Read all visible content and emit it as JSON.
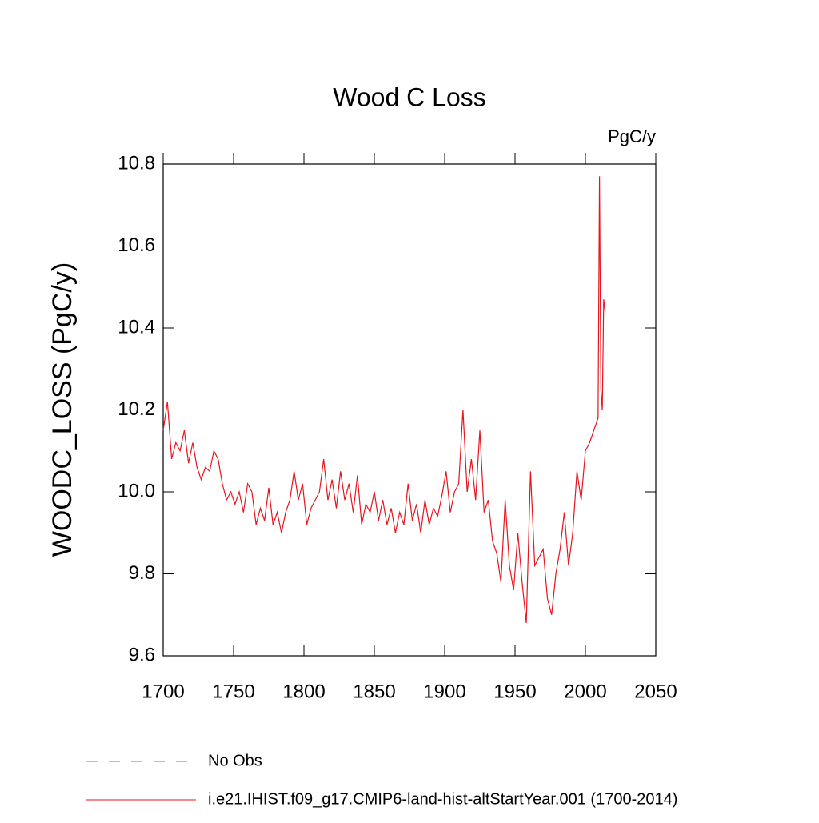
{
  "chart_data": {
    "type": "line",
    "title": "Wood C Loss",
    "units": "PgC/y",
    "ylabel": "WOODC_LOSS  (PgC/y)",
    "x": [
      1700,
      1703,
      1706,
      1709,
      1712,
      1715,
      1718,
      1721,
      1724,
      1727,
      1730,
      1733,
      1736,
      1739,
      1742,
      1745,
      1748,
      1751,
      1754,
      1757,
      1760,
      1763,
      1766,
      1769,
      1772,
      1775,
      1778,
      1781,
      1784,
      1787,
      1790,
      1793,
      1796,
      1799,
      1802,
      1805,
      1808,
      1811,
      1814,
      1817,
      1820,
      1823,
      1826,
      1829,
      1832,
      1835,
      1838,
      1841,
      1844,
      1847,
      1850,
      1853,
      1856,
      1859,
      1862,
      1865,
      1868,
      1871,
      1874,
      1877,
      1880,
      1883,
      1886,
      1889,
      1892,
      1895,
      1898,
      1901,
      1904,
      1907,
      1910,
      1913,
      1916,
      1919,
      1922,
      1925,
      1928,
      1931,
      1934,
      1937,
      1940,
      1943,
      1946,
      1949,
      1952,
      1955,
      1958,
      1961,
      1964,
      1967,
      1970,
      1973,
      1976,
      1979,
      1982,
      1985,
      1988,
      1991,
      1994,
      1997,
      2000,
      2003,
      2006,
      2009,
      2010,
      2011,
      2012,
      2013,
      2014
    ],
    "series": [
      {
        "name": "i.e21.IHIST.f09_g17.CMIP6-land-hist-altStartYear.001 (1700-2014)",
        "color": "#e8141e",
        "values": [
          10.15,
          10.22,
          10.08,
          10.12,
          10.1,
          10.15,
          10.07,
          10.12,
          10.06,
          10.03,
          10.06,
          10.05,
          10.1,
          10.08,
          10.02,
          9.98,
          10.0,
          9.97,
          10.0,
          9.95,
          10.02,
          10.0,
          9.92,
          9.96,
          9.93,
          10.01,
          9.92,
          9.95,
          9.9,
          9.95,
          9.98,
          10.05,
          9.98,
          10.02,
          9.92,
          9.96,
          9.98,
          10.0,
          10.08,
          9.98,
          10.03,
          9.96,
          10.05,
          9.98,
          10.02,
          9.95,
          10.04,
          9.92,
          9.97,
          9.95,
          10.0,
          9.93,
          9.98,
          9.92,
          9.96,
          9.9,
          9.95,
          9.92,
          10.02,
          9.93,
          9.97,
          9.9,
          9.98,
          9.92,
          9.96,
          9.94,
          9.99,
          10.05,
          9.95,
          10.0,
          10.02,
          10.2,
          10.0,
          10.08,
          9.98,
          10.15,
          9.95,
          9.98,
          9.88,
          9.85,
          9.78,
          9.98,
          9.82,
          9.76,
          9.9,
          9.78,
          9.68,
          10.05,
          9.82,
          9.84,
          9.86,
          9.74,
          9.7,
          9.8,
          9.86,
          9.95,
          9.82,
          9.9,
          10.05,
          9.98,
          10.1,
          10.12,
          10.15,
          10.18,
          10.77,
          10.25,
          10.2,
          10.47,
          10.44
        ]
      },
      {
        "name": "No Obs",
        "color": "#7b68c8",
        "dash": "dashed"
      }
    ],
    "xlim": [
      1700,
      2050
    ],
    "xticks": [
      1700,
      1750,
      1800,
      1850,
      1900,
      1950,
      2000,
      2050
    ],
    "ylim": [
      9.6,
      10.8
    ],
    "yticks": [
      9.6,
      9.8,
      {
        "value": 10,
        "label": "10.0"
      },
      10.2,
      10.4,
      10.6,
      10.8
    ]
  }
}
